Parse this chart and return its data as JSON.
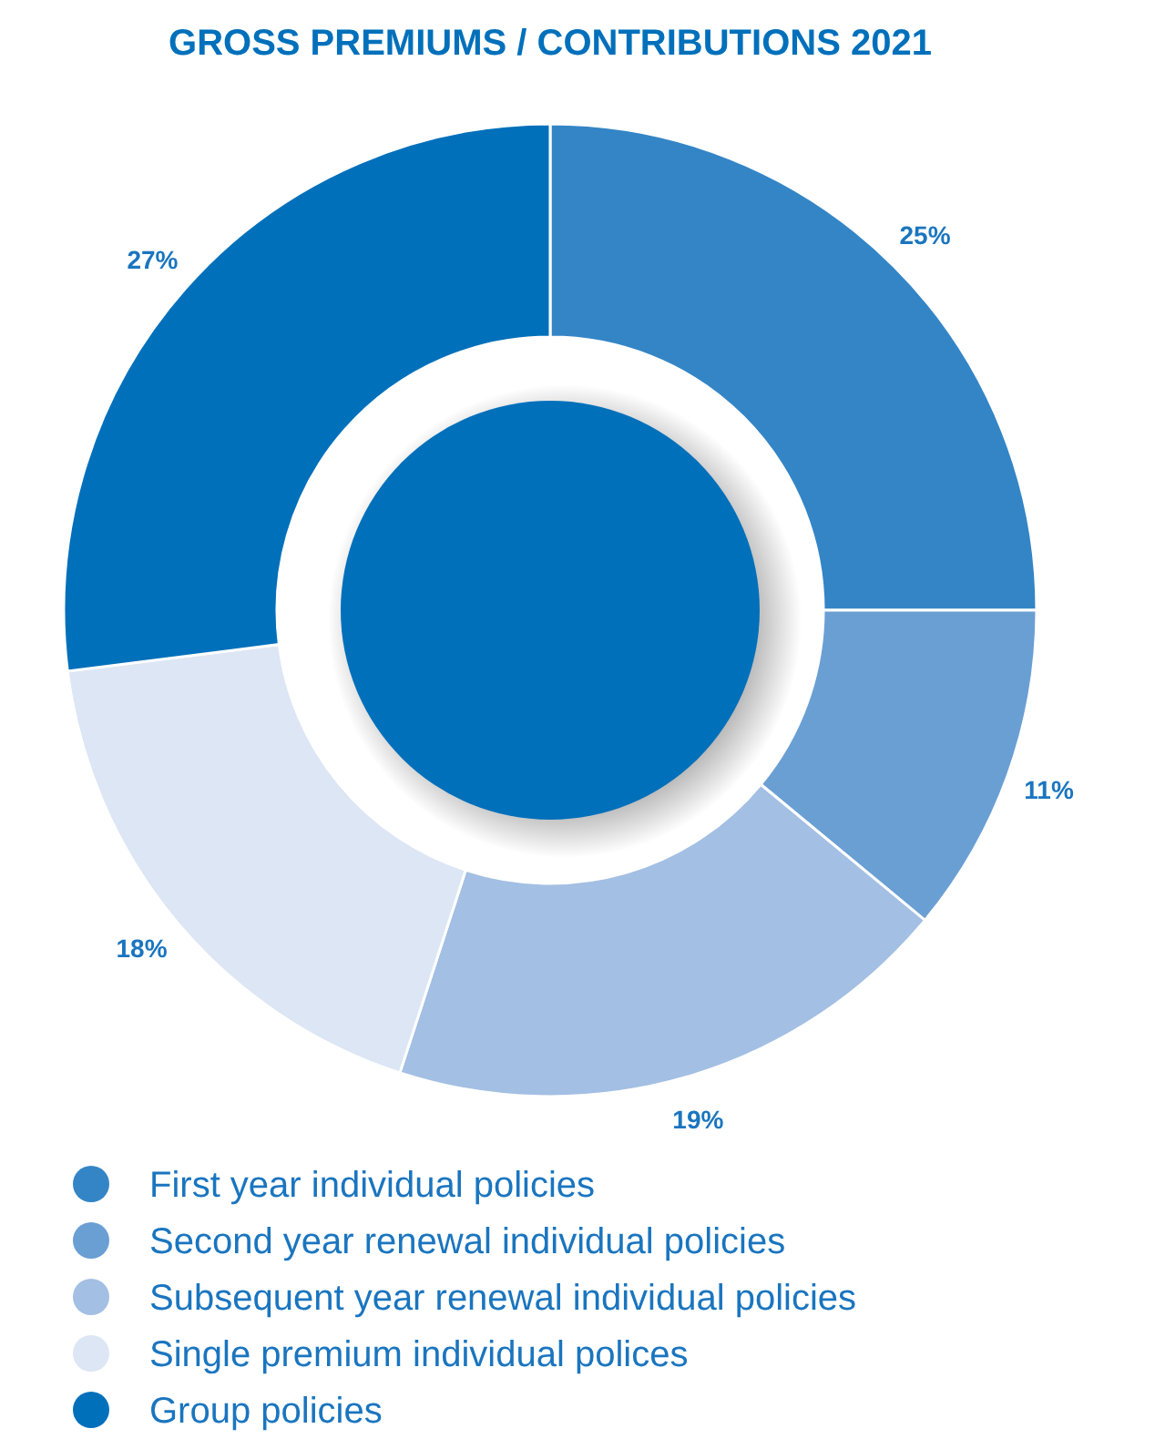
{
  "chart_data": {
    "type": "donut",
    "title": "GROSS PREMIUMS / CONTRIBUTIONS 2021",
    "categories": [
      "First year individual policies",
      "Second year renewal individual policies",
      "Subsequent year renewal individual policies",
      "Single premium individual polices",
      "Group policies"
    ],
    "values": [
      25,
      11,
      19,
      18,
      27
    ],
    "value_labels": [
      "25%",
      "11%",
      "19%",
      "18%",
      "27%"
    ],
    "colors": [
      "#3385c6",
      "#6a9fd4",
      "#a3bfe3",
      "#dce6f4",
      "#0070bb"
    ],
    "legend": "bottom"
  }
}
